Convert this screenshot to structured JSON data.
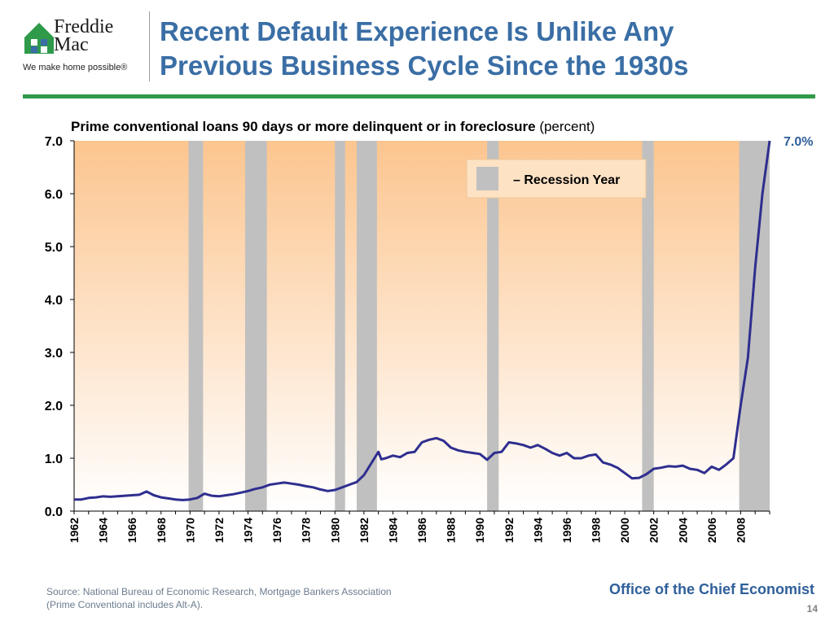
{
  "header": {
    "logo_line1": "Freddie",
    "logo_line2": "Mac",
    "logo_tagline": "We make home possible®",
    "title_line1": "Recent Default Experience Is Unlike Any",
    "title_line2": "Previous Business Cycle Since the 1930s"
  },
  "colors": {
    "title": "#3a6ea5",
    "rule": "#2e9a4a",
    "line": "#2e2e8f",
    "recession": "#c0c0c0",
    "bg_top": "#fcc58f",
    "bg_bottom": "#ffffff"
  },
  "chart_data": {
    "type": "line",
    "title": "Prime conventional loans 90 days or more delinquent or in foreclosure",
    "title_suffix": "(percent)",
    "xlabel": "",
    "ylabel": "",
    "xlim": [
      1962,
      2010
    ],
    "ylim": [
      0,
      7
    ],
    "y_ticks": [
      "0.0",
      "1.0",
      "2.0",
      "3.0",
      "4.0",
      "5.0",
      "6.0",
      "7.0"
    ],
    "x_ticks": [
      "1962",
      "1964",
      "1966",
      "1968",
      "1970",
      "1972",
      "1974",
      "1976",
      "1978",
      "1980",
      "1982",
      "1984",
      "1986",
      "1988",
      "1990",
      "1992",
      "1994",
      "1996",
      "1998",
      "2000",
      "2002",
      "2004",
      "2006",
      "2008"
    ],
    "end_label": "7.0%",
    "legend": {
      "label": "– Recession Year",
      "position": "top-right"
    },
    "recessions": [
      [
        1969.9,
        1970.9
      ],
      [
        1973.8,
        1975.3
      ],
      [
        1980.0,
        1980.7
      ],
      [
        1981.5,
        1982.9
      ],
      [
        1990.5,
        1991.3
      ],
      [
        2001.2,
        2002.0
      ],
      [
        2007.9,
        2010.0
      ]
    ],
    "series": [
      {
        "name": "Prime conventional 90+ days delinquent or in foreclosure",
        "x": [
          1962.0,
          1962.5,
          1963.0,
          1963.5,
          1964.0,
          1964.5,
          1965.0,
          1965.5,
          1966.0,
          1966.5,
          1967.0,
          1967.5,
          1968.0,
          1968.5,
          1969.0,
          1969.5,
          1970.0,
          1970.5,
          1971.0,
          1971.5,
          1972.0,
          1972.5,
          1973.0,
          1973.5,
          1974.0,
          1974.5,
          1975.0,
          1975.5,
          1976.0,
          1976.5,
          1977.0,
          1977.5,
          1978.0,
          1978.5,
          1979.0,
          1979.5,
          1980.0,
          1980.5,
          1981.0,
          1981.5,
          1982.0,
          1982.5,
          1983.0,
          1983.2,
          1983.5,
          1984.0,
          1984.5,
          1985.0,
          1985.5,
          1986.0,
          1986.5,
          1987.0,
          1987.5,
          1988.0,
          1988.5,
          1989.0,
          1989.5,
          1990.0,
          1990.5,
          1991.0,
          1991.5,
          1992.0,
          1992.5,
          1993.0,
          1993.5,
          1994.0,
          1994.5,
          1995.0,
          1995.5,
          1996.0,
          1996.5,
          1997.0,
          1997.5,
          1998.0,
          1998.5,
          1999.0,
          1999.5,
          2000.0,
          2000.5,
          2001.0,
          2001.5,
          2002.0,
          2002.5,
          2003.0,
          2003.5,
          2004.0,
          2004.5,
          2005.0,
          2005.5,
          2006.0,
          2006.5,
          2007.0,
          2007.5,
          2008.0,
          2008.5,
          2009.0,
          2009.5,
          2010.0
        ],
        "values": [
          0.22,
          0.22,
          0.25,
          0.26,
          0.28,
          0.27,
          0.28,
          0.29,
          0.3,
          0.31,
          0.37,
          0.3,
          0.26,
          0.24,
          0.22,
          0.21,
          0.22,
          0.25,
          0.33,
          0.29,
          0.28,
          0.3,
          0.32,
          0.35,
          0.38,
          0.42,
          0.45,
          0.5,
          0.52,
          0.54,
          0.52,
          0.5,
          0.47,
          0.45,
          0.41,
          0.38,
          0.4,
          0.45,
          0.5,
          0.55,
          0.68,
          0.9,
          1.12,
          0.98,
          1.0,
          1.05,
          1.02,
          1.1,
          1.12,
          1.3,
          1.35,
          1.38,
          1.33,
          1.2,
          1.15,
          1.12,
          1.1,
          1.08,
          0.97,
          1.1,
          1.12,
          1.3,
          1.28,
          1.25,
          1.2,
          1.25,
          1.18,
          1.1,
          1.05,
          1.1,
          1.0,
          1.0,
          1.05,
          1.07,
          0.92,
          0.88,
          0.82,
          0.72,
          0.62,
          0.63,
          0.7,
          0.8,
          0.82,
          0.85,
          0.84,
          0.86,
          0.8,
          0.78,
          0.72,
          0.84,
          0.78,
          0.88,
          1.0,
          2.0,
          2.9,
          4.6,
          6.0,
          7.0
        ]
      }
    ]
  },
  "footer": {
    "source_line1": "Source: National Bureau of Economic Research, Mortgage Bankers Association",
    "source_line2": "(Prime Conventional includes Alt-A).",
    "office": "Office of the Chief Economist",
    "page": "14"
  }
}
